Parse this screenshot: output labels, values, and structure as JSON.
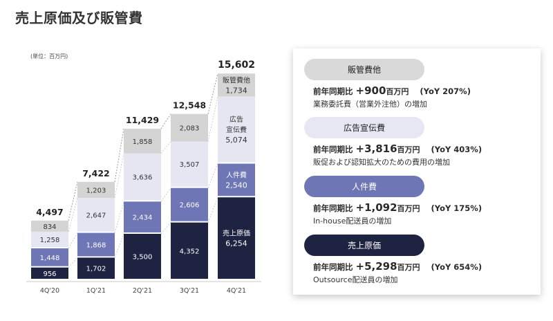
{
  "page": {
    "title": "売上原価及び販管費",
    "unit": "(単位：百万円)"
  },
  "colors": {
    "cogs": "#1f2342",
    "personnel": "#6e76b6",
    "ad": "#e5e6f2",
    "sga_other": "#d4d4d4"
  },
  "chart_data": {
    "type": "bar",
    "stacked": true,
    "categories": [
      "4Q'20",
      "1Q'21",
      "2Q'21",
      "3Q'21",
      "4Q'21"
    ],
    "series": [
      {
        "key": "cogs",
        "name": "売上原価",
        "values": [
          956,
          1702,
          3500,
          4352,
          6254
        ]
      },
      {
        "key": "personnel",
        "name": "人件費",
        "values": [
          1448,
          1868,
          2434,
          2606,
          2540
        ]
      },
      {
        "key": "ad",
        "name": "広告宣伝費",
        "values": [
          1258,
          2647,
          3636,
          3507,
          5074
        ]
      },
      {
        "key": "sga_other",
        "name": "販管費他",
        "values": [
          834,
          1203,
          1858,
          2083,
          1734
        ]
      }
    ],
    "totals": [
      "4,497",
      "7,422",
      "11,429",
      "12,548",
      "15,602"
    ],
    "value_labels": [
      [
        "956",
        "1,702",
        "3,500",
        "4,352",
        "6,254"
      ],
      [
        "1,448",
        "1,868",
        "2,434",
        "2,606",
        "2,540"
      ],
      [
        "1,258",
        "2,647",
        "3,636",
        "3,507",
        "5,074"
      ],
      [
        "834",
        "1,203",
        "1,858",
        "2,083",
        "1,734"
      ]
    ],
    "inline_series_labels": {
      "cogs": [
        "売上原価"
      ],
      "personnel": [
        "人件費"
      ],
      "ad": [
        "広告",
        "宣伝費"
      ],
      "sga_other": [
        "販管費他"
      ]
    }
  },
  "panel": {
    "items": [
      {
        "pill": "販管費他",
        "prefix": "前年同期比",
        "change": "+900",
        "unit": "百万円",
        "yoy": "(YoY 207%)",
        "note": "業務委託費（営業外注他）の増加"
      },
      {
        "pill": "広告宣伝費",
        "prefix": "前年同期比",
        "change": "+3,816",
        "unit": "百万円",
        "yoy": "(YoY 403%)",
        "note": "販促および認知拡大のための費用の増加"
      },
      {
        "pill": "人件費",
        "prefix": "前年同期比",
        "change": "+1,092",
        "unit": "百万円",
        "yoy": "(YoY 175%)",
        "note": "In-house配送員の増加"
      },
      {
        "pill": "売上原価",
        "prefix": "前年同期比",
        "change": "+5,298",
        "unit": "百万円",
        "yoy": "(YoY 654%)",
        "note": "Outsource配送員の増加"
      }
    ]
  }
}
